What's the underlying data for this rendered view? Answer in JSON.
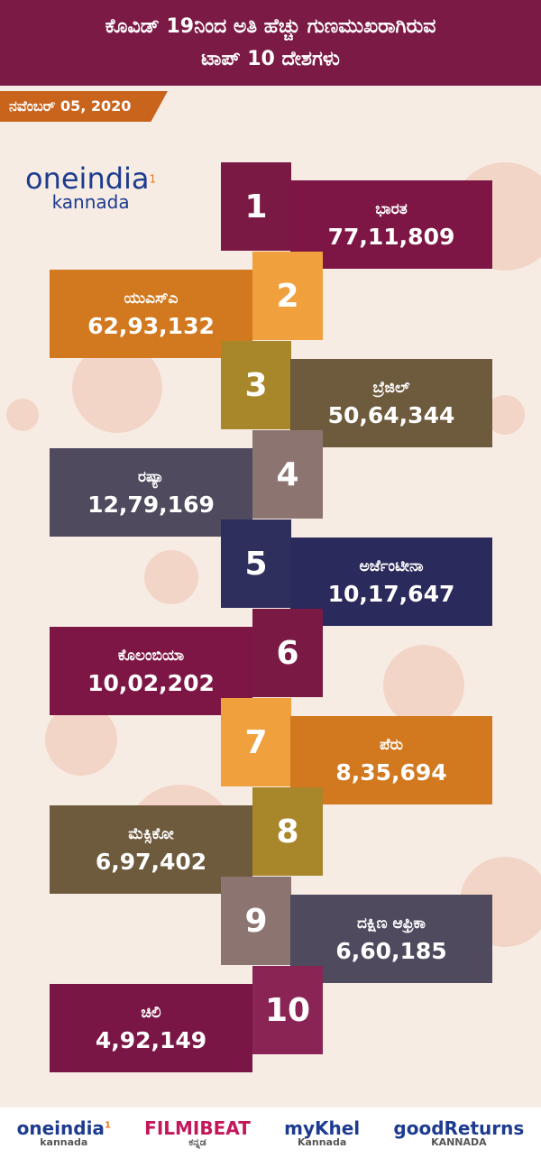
{
  "header": {
    "title_lines": [
      "ಕೊವಿಡ್ 19ನಿಂದ ಅತಿ ಹೆಚ್ಚು ಗುಣಮುಖರಾಗಿರುವ",
      "ಟಾಪ್ 10 ದೇಶಗಳು"
    ],
    "date": "ನವೆಂಬರ್ 05, 2020"
  },
  "logo": {
    "name": "oneindia",
    "sub": "kannada",
    "badge": "1"
  },
  "items": [
    {
      "rank": "1",
      "country": "ಭಾರತ",
      "value": "77,11,809"
    },
    {
      "rank": "2",
      "country": "ಯುಎಸ್ಎ",
      "value": "62,93,132"
    },
    {
      "rank": "3",
      "country": "ಬ್ರೆಜಿಲ್",
      "value": "50,64,344"
    },
    {
      "rank": "4",
      "country": "ರಷ್ಯಾ",
      "value": "12,79,169"
    },
    {
      "rank": "5",
      "country": "ಅರ್ಜೆಂಟೀನಾ",
      "value": "10,17,647"
    },
    {
      "rank": "6",
      "country": "ಕೊಲಂಬಿಯಾ",
      "value": "10,02,202"
    },
    {
      "rank": "7",
      "country": "ಪೆರು",
      "value": "8,35,694"
    },
    {
      "rank": "8",
      "country": "ಮೆಕ್ಸಿಕೋ",
      "value": "6,97,402"
    },
    {
      "rank": "9",
      "country": "ದಕ್ಷಿಣ ಆಫ್ರಿಕಾ",
      "value": "6,60,185"
    },
    {
      "rank": "10",
      "country": "ಚಿಲಿ",
      "value": "4,92,149"
    }
  ],
  "footer": {
    "logos": [
      {
        "name": "oneindia",
        "sub": "kannada",
        "badge": "1"
      },
      {
        "name": "FILMIBEAT",
        "sub": "ಕನ್ನಡ"
      },
      {
        "name": "myKhel",
        "sub": "Kannada"
      },
      {
        "name": "goodReturns",
        "sub": "KANNADA"
      }
    ]
  }
}
